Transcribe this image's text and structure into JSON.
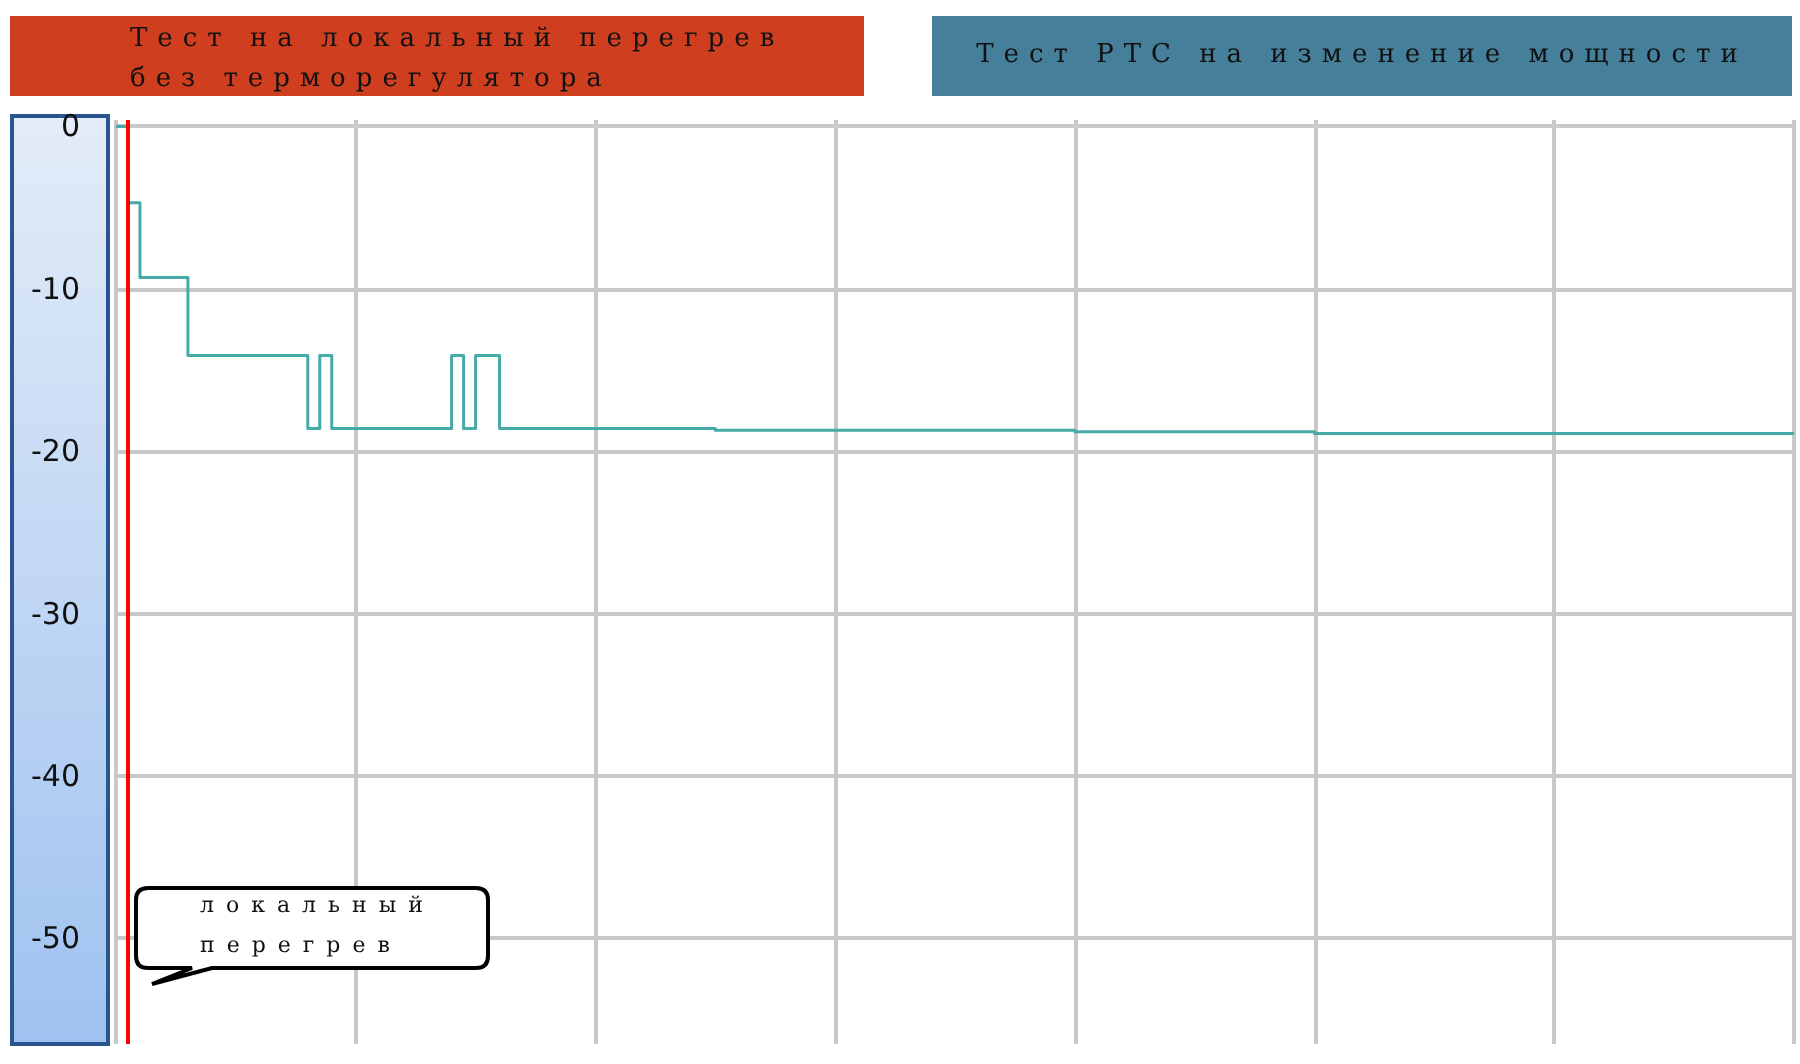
{
  "chart_data": {
    "type": "step",
    "title": "Тест на локальный перегрев без терморегулятора",
    "subtitle": "Тест PTC на изменение мощности",
    "annotations": [
      "локальный перегрев"
    ],
    "categories": [
      null,
      null,
      null,
      null,
      null,
      null,
      null,
      null,
      null,
      null,
      null,
      null,
      null,
      null,
      null,
      null,
      null,
      null,
      null,
      null,
      null,
      null,
      null,
      null,
      null,
      null,
      null,
      null,
      null,
      null,
      null,
      null,
      null,
      null,
      null,
      null,
      null,
      null,
      null,
      null,
      null,
      null,
      null,
      null,
      null,
      null,
      null,
      null,
      null,
      null,
      null,
      null,
      null,
      null,
      null,
      null,
      null,
      null,
      null,
      null,
      null,
      null,
      null,
      null,
      null,
      null,
      null,
      null,
      null,
      null,
      null,
      null,
      null,
      null,
      null,
      null,
      null,
      null,
      null,
      null,
      null,
      null,
      null,
      null,
      null,
      null,
      null,
      null,
      null,
      null,
      null,
      null,
      null,
      null,
      null,
      null,
      null,
      null,
      null,
      null,
      null,
      null,
      null,
      null,
      null,
      null,
      null,
      null,
      null,
      null,
      null,
      null,
      null,
      null,
      null,
      null,
      null,
      null,
      null,
      null,
      null,
      null,
      null,
      null,
      null,
      null,
      null,
      null,
      null,
      null,
      null,
      null,
      null,
      null,
      null,
      null,
      null,
      null,
      null,
      null,
      null
    ],
    "series": [
      {
        "color": "#45aaa8",
        "values": [
          0,
          -4.7,
          -9.3,
          -9.3,
          -9.3,
          -9.3,
          -14.1,
          -14.1,
          -14.1,
          -14.1,
          -14.1,
          -14.1,
          -14.1,
          -14.1,
          -14.1,
          -14.1,
          -18.6,
          -14.1,
          -18.6,
          -18.6,
          -18.6,
          -18.6,
          -18.6,
          -18.6,
          -18.6,
          -18.6,
          -18.6,
          -18.6,
          -14.1,
          -18.6,
          -14.1,
          -14.1,
          -18.6,
          -18.6,
          -18.6,
          -18.6,
          -18.6,
          -18.6,
          -18.6,
          -18.6,
          -18.6,
          -18.6,
          -18.6,
          -18.6,
          -18.6,
          -18.6,
          -18.6,
          -18.6,
          -18.6,
          -18.6,
          -18.7,
          -18.7,
          -18.7,
          -18.7,
          -18.7,
          -18.7,
          -18.7,
          -18.7,
          -18.7,
          -18.7,
          -18.7,
          -18.7,
          -18.7,
          -18.7,
          -18.7,
          -18.7,
          -18.7,
          -18.7,
          -18.7,
          -18.7,
          -18.7,
          -18.7,
          -18.7,
          -18.7,
          -18.7,
          -18.7,
          -18.7,
          -18.7,
          -18.7,
          -18.7,
          -18.8,
          -18.8,
          -18.8,
          -18.8,
          -18.8,
          -18.8,
          -18.8,
          -18.8,
          -18.8,
          -18.8,
          -18.8,
          -18.8,
          -18.8,
          -18.8,
          -18.8,
          -18.8,
          -18.8,
          -18.8,
          -18.8,
          -18.8,
          -18.9,
          -18.9,
          -18.9,
          -18.9,
          -18.9,
          -18.9,
          -18.9,
          -18.9,
          -18.9,
          -18.9,
          -18.9,
          -18.9,
          -18.9,
          -18.9,
          -18.9,
          -18.9,
          -18.9,
          -18.9,
          -18.9,
          -18.9,
          -18.9,
          -18.9,
          -18.9,
          -18.9,
          -18.9,
          -18.9,
          -18.9,
          -18.9,
          -18.9,
          -18.9,
          -18.9,
          -18.9,
          -18.9,
          -18.9,
          -18.9,
          -18.9,
          -18.9,
          -18.9,
          -18.9,
          -18.9,
          -18.9
        ]
      }
    ],
    "ylim": [
      -56.5,
      0.4
    ],
    "yticks": [
      0,
      -10,
      -20,
      -30,
      -40,
      -50
    ],
    "tick_labels": "y",
    "grid": true,
    "line_style": "solid"
  }
}
